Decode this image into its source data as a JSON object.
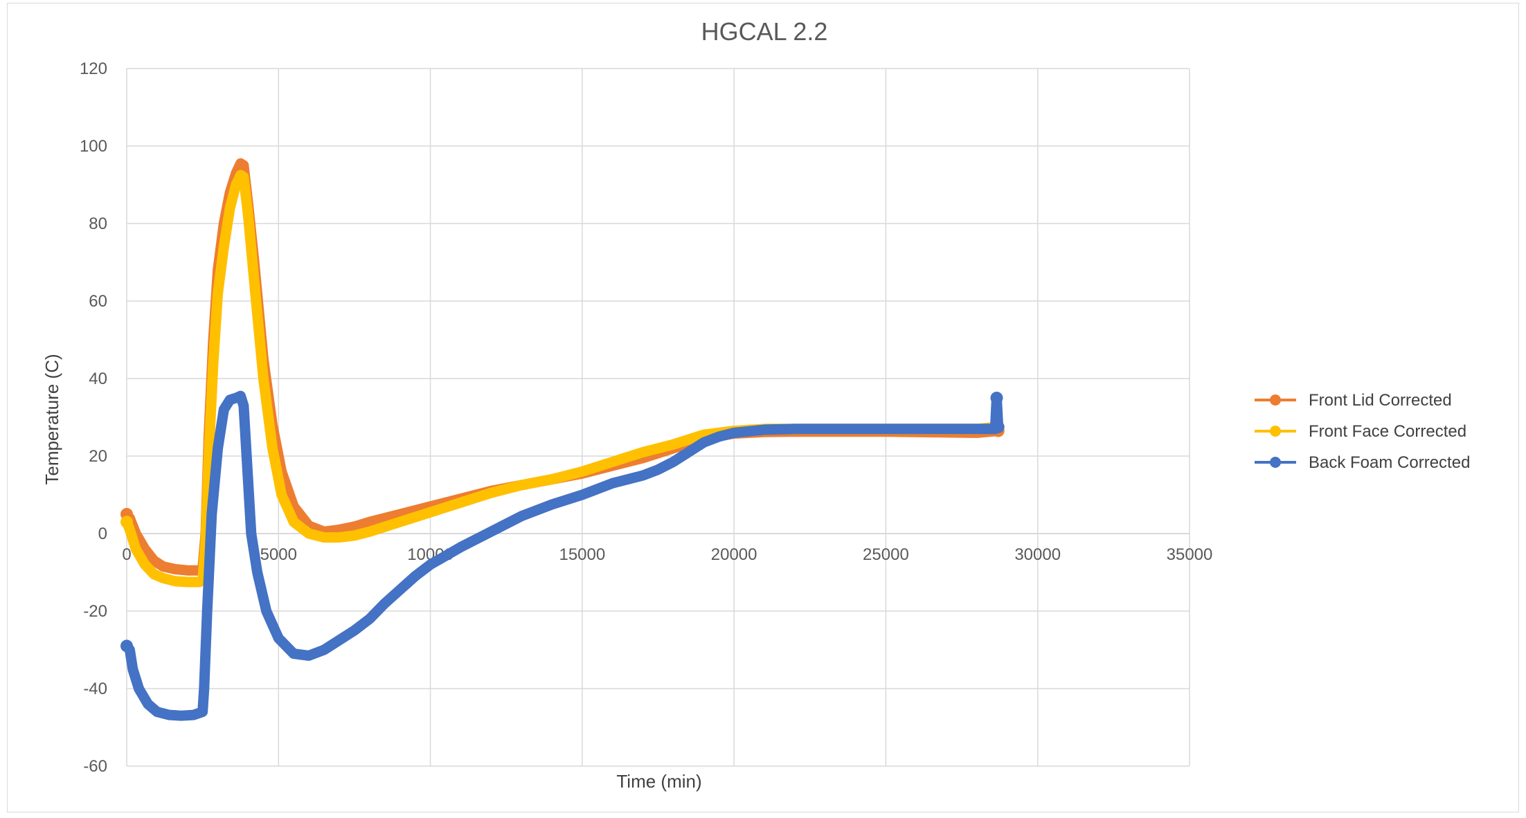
{
  "chart_data": {
    "type": "line",
    "title": "HGCAL 2.2",
    "xlabel": "Time (min)",
    "ylabel": "Temperature (C)",
    "xlim": [
      0,
      35000
    ],
    "ylim": [
      -60,
      120
    ],
    "xticks": [
      0,
      5000,
      10000,
      15000,
      20000,
      25000,
      30000,
      35000
    ],
    "yticks": [
      -60,
      -40,
      -20,
      0,
      20,
      40,
      60,
      80,
      100,
      120
    ],
    "grid": true,
    "legend_position": "right",
    "series": [
      {
        "name": "Front Lid Corrected",
        "color": "#ED7D31",
        "x": [
          0,
          100,
          300,
          600,
          900,
          1200,
          1600,
          2000,
          2400,
          2500,
          2600,
          2700,
          2850,
          3000,
          3200,
          3400,
          3600,
          3750,
          3850,
          4000,
          4200,
          4500,
          4800,
          5100,
          5500,
          6000,
          6500,
          7000,
          7500,
          8000,
          9000,
          10000,
          11000,
          12000,
          13000,
          14000,
          15000,
          16000,
          17000,
          18000,
          19000,
          20000,
          21000,
          22000,
          25000,
          28000,
          28700
        ],
        "y": [
          5,
          4,
          0,
          -4,
          -7,
          -8.5,
          -9.2,
          -9.5,
          -9.5,
          -9,
          0,
          25,
          50,
          68,
          80,
          88,
          93,
          95.5,
          95,
          85,
          70,
          45,
          28,
          16,
          7,
          2,
          0.5,
          1,
          1.8,
          3,
          5,
          7,
          9,
          11,
          12.5,
          14,
          15.5,
          17.5,
          19.5,
          22,
          24.5,
          25.8,
          26.2,
          26.3,
          26.3,
          26,
          26.5
        ]
      },
      {
        "name": "Front Face Corrected",
        "color": "#FFC000",
        "x": [
          0,
          100,
          300,
          600,
          900,
          1200,
          1600,
          2000,
          2400,
          2500,
          2600,
          2700,
          2850,
          3000,
          3200,
          3400,
          3600,
          3750,
          3850,
          4000,
          4200,
          4500,
          4800,
          5100,
          5500,
          6000,
          6500,
          7000,
          7500,
          8000,
          9000,
          10000,
          11000,
          12000,
          13000,
          14000,
          15000,
          16000,
          17000,
          18000,
          19000,
          20000,
          21000,
          22000,
          25000,
          28000,
          28700
        ],
        "y": [
          3,
          1,
          -4,
          -8,
          -10.5,
          -11.5,
          -12.3,
          -12.5,
          -12.5,
          -12,
          -2,
          20,
          44,
          62,
          74,
          84,
          90,
          92.5,
          92,
          82,
          65,
          40,
          22,
          10,
          3,
          0,
          -1,
          -1,
          -0.5,
          0.5,
          3,
          5.5,
          8,
          10.5,
          12.5,
          14,
          16,
          18.5,
          21,
          23,
          25.5,
          26.5,
          27,
          27,
          27,
          27,
          27.5
        ]
      },
      {
        "name": "Back Foam Corrected",
        "color": "#4472C4",
        "x": [
          0,
          100,
          200,
          400,
          700,
          1000,
          1400,
          1800,
          2200,
          2500,
          2550,
          2650,
          2800,
          3000,
          3200,
          3400,
          3600,
          3750,
          3850,
          3950,
          4100,
          4300,
          4600,
          5000,
          5500,
          6000,
          6500,
          7000,
          7500,
          8000,
          8500,
          9000,
          9500,
          10000,
          11000,
          12000,
          13000,
          14000,
          15000,
          16000,
          17000,
          17500,
          18000,
          18500,
          19000,
          19500,
          20000,
          21000,
          22000,
          25000,
          28000,
          28600,
          28650,
          28700
        ],
        "y": [
          -29,
          -30,
          -35,
          -40,
          -44,
          -46,
          -46.8,
          -47,
          -46.8,
          -46,
          -40,
          -20,
          5,
          22,
          32,
          34.5,
          35,
          35.5,
          33,
          20,
          0,
          -10,
          -20,
          -27,
          -31,
          -31.5,
          -30,
          -27.5,
          -25,
          -22,
          -18,
          -14.5,
          -11,
          -8,
          -3.5,
          0.5,
          4.5,
          7.5,
          10,
          13,
          15,
          16.5,
          18.5,
          21,
          23.5,
          25,
          26,
          26.8,
          27,
          27,
          27,
          27,
          35,
          27.5
        ]
      }
    ]
  }
}
